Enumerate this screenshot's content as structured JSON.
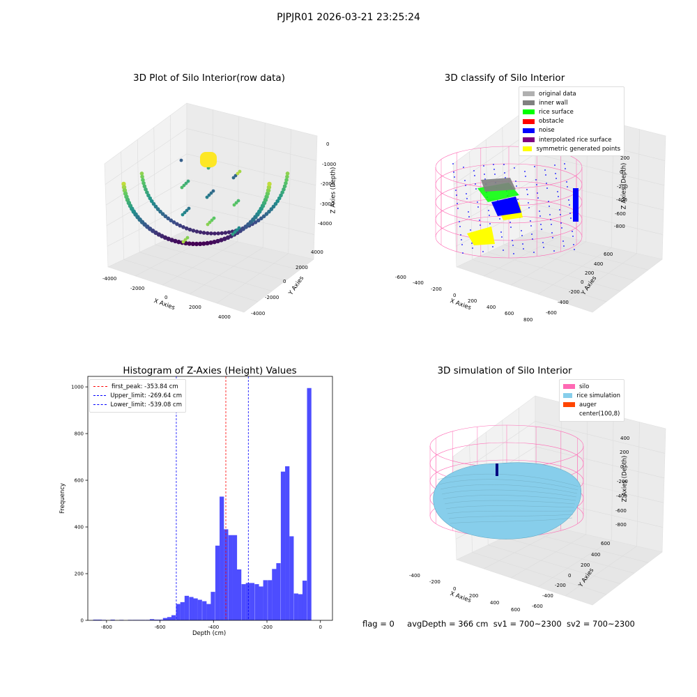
{
  "suptitle": "PJPJR01 2026-03-21 23:25:24",
  "colors": {
    "hist_bar": "#4d4dff",
    "peak_line": "#ff0000",
    "limit_line": "#0000ff",
    "silo": "#ff69b4",
    "rice": "#87ceeb",
    "auger": "#ff4500",
    "original": "#b0b0b0",
    "inner_wall": "#808080",
    "rice_surface": "#00ff00",
    "obstacle": "#ff0000",
    "noise": "#0000ff",
    "interp": "#800080",
    "symmetric": "#ffff00"
  },
  "panels": {
    "raw": {
      "title": "3D Plot of Silo Interior(row data)",
      "xlabel": "X Axies",
      "ylabel": "Y Axies",
      "zlabel": "Z Axies (Depth)",
      "xticks": [
        "-4000",
        "-2000",
        "0",
        "2000",
        "4000"
      ],
      "yticks": [
        "-4000",
        "-2000",
        "0",
        "2000",
        "4000"
      ],
      "zticks": [
        "0",
        "-1000",
        "-2000",
        "-3000",
        "-4000"
      ]
    },
    "classify": {
      "title": "3D classify of Silo Interior",
      "xlabel": "X Axies",
      "ylabel": "Y Axies",
      "zlabel": "Z Axies (Depth)",
      "xticks": [
        "-600",
        "-400",
        "-200",
        "0",
        "200",
        "400",
        "600",
        "800"
      ],
      "yticks": [
        "-600",
        "-400",
        "-200",
        "0",
        "200",
        "400",
        "600"
      ],
      "zticks": [
        "200",
        "0",
        "-200",
        "-400",
        "-600",
        "-800"
      ],
      "legend": [
        "original data",
        "inner wall",
        "rice surface",
        "obstacle",
        "noise",
        "interpolated rice surface",
        "symmetric generated points"
      ]
    },
    "sim": {
      "title": "3D simulation of Silo Interior",
      "xlabel": "X Axies",
      "ylabel": "Y Axies",
      "zlabel": "Z Axies (Depth)",
      "xticks": [
        "-400",
        "-200",
        "0",
        "200",
        "400",
        "600"
      ],
      "yticks": [
        "-600",
        "-400",
        "-200",
        "0",
        "200",
        "400",
        "600"
      ],
      "zticks": [
        "400",
        "200",
        "0",
        "-200",
        "-400",
        "-600",
        "-800"
      ],
      "legend": [
        "silo",
        "rice simulation",
        "auger",
        "center(100,8)"
      ]
    }
  },
  "chart_data": [
    {
      "type": "bar",
      "title": "Histogram of Z-Axies (Height) Values",
      "xlabel": "Depth (cm)",
      "ylabel": "Frequency",
      "xlim": [
        -870,
        45
      ],
      "ylim": [
        0,
        1045
      ],
      "xticks": [
        -800,
        -600,
        -400,
        -200,
        0
      ],
      "yticks": [
        0,
        200,
        400,
        600,
        800,
        1000
      ],
      "bin_width": 16.3,
      "bins": [
        {
          "x": -842,
          "y": 3
        },
        {
          "x": -826,
          "y": 3
        },
        {
          "x": -810,
          "y": 2
        },
        {
          "x": -793,
          "y": 0
        },
        {
          "x": -777,
          "y": 3
        },
        {
          "x": -761,
          "y": 0
        },
        {
          "x": -744,
          "y": 2
        },
        {
          "x": -728,
          "y": 0
        },
        {
          "x": -712,
          "y": 2
        },
        {
          "x": -695,
          "y": 2
        },
        {
          "x": -679,
          "y": 2
        },
        {
          "x": -663,
          "y": 2
        },
        {
          "x": -646,
          "y": 2
        },
        {
          "x": -630,
          "y": 5
        },
        {
          "x": -614,
          "y": 3
        },
        {
          "x": -598,
          "y": 3
        },
        {
          "x": -581,
          "y": 10
        },
        {
          "x": -565,
          "y": 14
        },
        {
          "x": -549,
          "y": 22
        },
        {
          "x": -532,
          "y": 70
        },
        {
          "x": -516,
          "y": 78
        },
        {
          "x": -500,
          "y": 105
        },
        {
          "x": -483,
          "y": 100
        },
        {
          "x": -467,
          "y": 94
        },
        {
          "x": -451,
          "y": 88
        },
        {
          "x": -434,
          "y": 82
        },
        {
          "x": -418,
          "y": 70
        },
        {
          "x": -402,
          "y": 122
        },
        {
          "x": -385,
          "y": 320
        },
        {
          "x": -369,
          "y": 530
        },
        {
          "x": -353,
          "y": 390
        },
        {
          "x": -336,
          "y": 365
        },
        {
          "x": -320,
          "y": 365
        },
        {
          "x": -304,
          "y": 218
        },
        {
          "x": -287,
          "y": 155
        },
        {
          "x": -271,
          "y": 160
        },
        {
          "x": -255,
          "y": 160
        },
        {
          "x": -238,
          "y": 155
        },
        {
          "x": -222,
          "y": 145
        },
        {
          "x": -206,
          "y": 172
        },
        {
          "x": -189,
          "y": 172
        },
        {
          "x": -173,
          "y": 220
        },
        {
          "x": -157,
          "y": 245
        },
        {
          "x": -140,
          "y": 637
        },
        {
          "x": -124,
          "y": 660
        },
        {
          "x": -108,
          "y": 360
        },
        {
          "x": -91,
          "y": 115
        },
        {
          "x": -75,
          "y": 112
        },
        {
          "x": -59,
          "y": 170
        },
        {
          "x": -42,
          "y": 995
        }
      ],
      "vlines": [
        {
          "label": "first_peak: -353.84 cm",
          "x": -353.84,
          "color": "red"
        },
        {
          "label": "Upper_limit: -269.64 cm",
          "x": -269.64,
          "color": "blue"
        },
        {
          "label": "Lower_limit: -539.08 cm",
          "x": -539.08,
          "color": "blue"
        }
      ]
    }
  ],
  "footer": {
    "flag": "flag = 0",
    "avg": "avgDepth = 366 cm",
    "sv1": "sv1 = 700~2300",
    "sv2": "sv2 = 700~2300"
  }
}
